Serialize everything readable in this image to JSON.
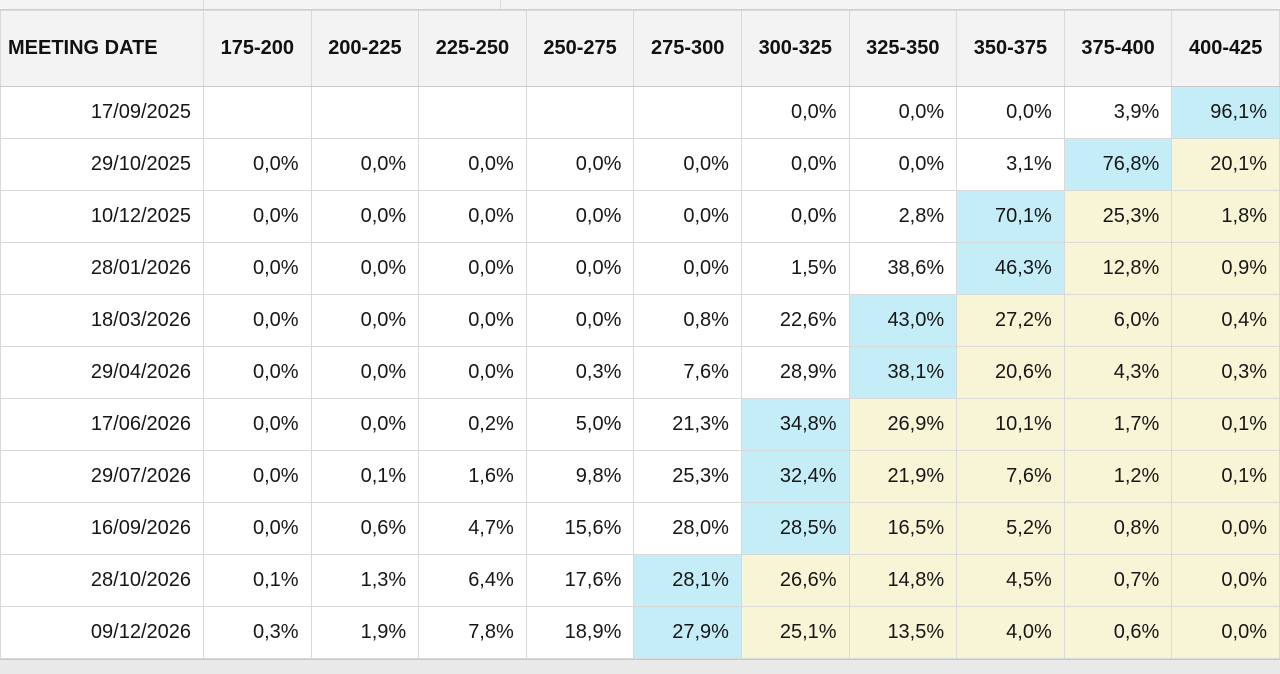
{
  "table": {
    "header": {
      "date_label": "MEETING DATE",
      "rate_ranges": [
        "175-200",
        "200-225",
        "225-250",
        "250-275",
        "275-300",
        "300-325",
        "325-350",
        "350-375",
        "375-400",
        "400-425"
      ]
    },
    "rows": [
      {
        "date": "17/09/2025",
        "values": [
          "",
          "",
          "",
          "",
          "",
          "0,0%",
          "0,0%",
          "0,0%",
          "3,9%",
          "96,1%"
        ],
        "highlights": [
          "none",
          "none",
          "none",
          "none",
          "none",
          "none",
          "none",
          "none",
          "none",
          "cyan"
        ]
      },
      {
        "date": "29/10/2025",
        "values": [
          "0,0%",
          "0,0%",
          "0,0%",
          "0,0%",
          "0,0%",
          "0,0%",
          "0,0%",
          "3,1%",
          "76,8%",
          "20,1%"
        ],
        "highlights": [
          "none",
          "none",
          "none",
          "none",
          "none",
          "none",
          "none",
          "none",
          "cyan",
          "yellow"
        ]
      },
      {
        "date": "10/12/2025",
        "values": [
          "0,0%",
          "0,0%",
          "0,0%",
          "0,0%",
          "0,0%",
          "0,0%",
          "2,8%",
          "70,1%",
          "25,3%",
          "1,8%"
        ],
        "highlights": [
          "none",
          "none",
          "none",
          "none",
          "none",
          "none",
          "none",
          "cyan",
          "yellow",
          "yellow"
        ]
      },
      {
        "date": "28/01/2026",
        "values": [
          "0,0%",
          "0,0%",
          "0,0%",
          "0,0%",
          "0,0%",
          "1,5%",
          "38,6%",
          "46,3%",
          "12,8%",
          "0,9%"
        ],
        "highlights": [
          "none",
          "none",
          "none",
          "none",
          "none",
          "none",
          "none",
          "cyan",
          "yellow",
          "yellow"
        ]
      },
      {
        "date": "18/03/2026",
        "values": [
          "0,0%",
          "0,0%",
          "0,0%",
          "0,0%",
          "0,8%",
          "22,6%",
          "43,0%",
          "27,2%",
          "6,0%",
          "0,4%"
        ],
        "highlights": [
          "none",
          "none",
          "none",
          "none",
          "none",
          "none",
          "cyan",
          "yellow",
          "yellow",
          "yellow"
        ]
      },
      {
        "date": "29/04/2026",
        "values": [
          "0,0%",
          "0,0%",
          "0,0%",
          "0,3%",
          "7,6%",
          "28,9%",
          "38,1%",
          "20,6%",
          "4,3%",
          "0,3%"
        ],
        "highlights": [
          "none",
          "none",
          "none",
          "none",
          "none",
          "none",
          "cyan",
          "yellow",
          "yellow",
          "yellow"
        ]
      },
      {
        "date": "17/06/2026",
        "values": [
          "0,0%",
          "0,0%",
          "0,2%",
          "5,0%",
          "21,3%",
          "34,8%",
          "26,9%",
          "10,1%",
          "1,7%",
          "0,1%"
        ],
        "highlights": [
          "none",
          "none",
          "none",
          "none",
          "none",
          "cyan",
          "yellow",
          "yellow",
          "yellow",
          "yellow"
        ]
      },
      {
        "date": "29/07/2026",
        "values": [
          "0,0%",
          "0,1%",
          "1,6%",
          "9,8%",
          "25,3%",
          "32,4%",
          "21,9%",
          "7,6%",
          "1,2%",
          "0,1%"
        ],
        "highlights": [
          "none",
          "none",
          "none",
          "none",
          "none",
          "cyan",
          "yellow",
          "yellow",
          "yellow",
          "yellow"
        ]
      },
      {
        "date": "16/09/2026",
        "values": [
          "0,0%",
          "0,6%",
          "4,7%",
          "15,6%",
          "28,0%",
          "28,5%",
          "16,5%",
          "5,2%",
          "0,8%",
          "0,0%"
        ],
        "highlights": [
          "none",
          "none",
          "none",
          "none",
          "none",
          "cyan",
          "yellow",
          "yellow",
          "yellow",
          "yellow"
        ]
      },
      {
        "date": "28/10/2026",
        "values": [
          "0,1%",
          "1,3%",
          "6,4%",
          "17,6%",
          "28,1%",
          "26,6%",
          "14,8%",
          "4,5%",
          "0,7%",
          "0,0%"
        ],
        "highlights": [
          "none",
          "none",
          "none",
          "none",
          "cyan",
          "yellow",
          "yellow",
          "yellow",
          "yellow",
          "yellow"
        ]
      },
      {
        "date": "09/12/2026",
        "values": [
          "0,3%",
          "1,9%",
          "7,8%",
          "18,9%",
          "27,9%",
          "25,1%",
          "13,5%",
          "4,0%",
          "0,6%",
          "0,0%"
        ],
        "highlights": [
          "none",
          "none",
          "none",
          "none",
          "cyan",
          "yellow",
          "yellow",
          "yellow",
          "yellow",
          "yellow"
        ]
      }
    ]
  },
  "colors": {
    "cyan_highlight": "#c5edf8",
    "yellow_highlight": "#f8f5d7",
    "header_bg": "#f3f3f3",
    "grid_line": "#d9d9d9"
  }
}
